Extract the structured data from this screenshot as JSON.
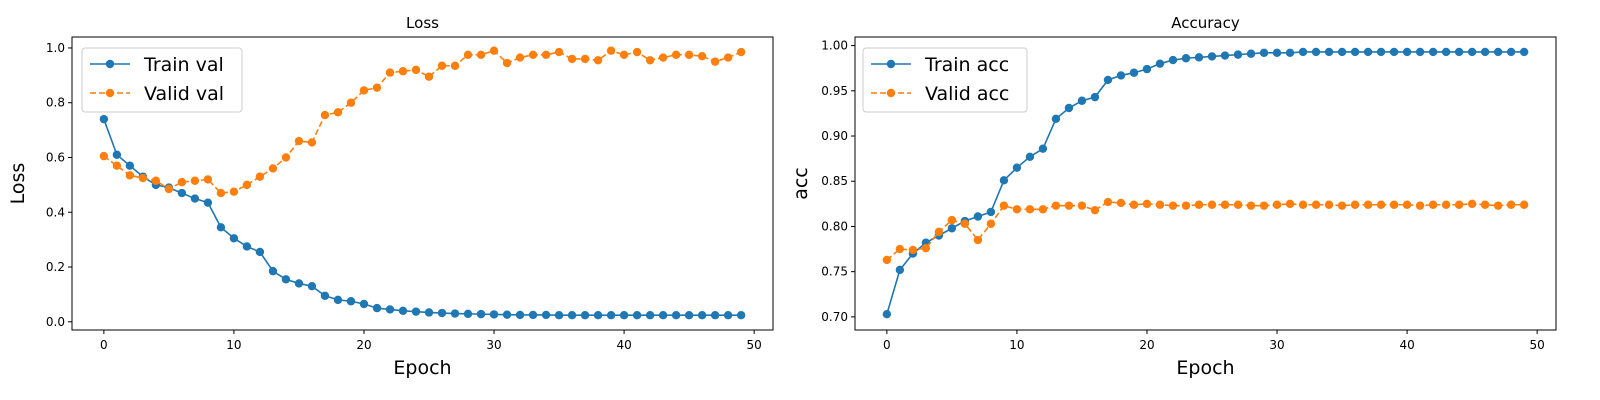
{
  "colors": {
    "train": "#1f77b4",
    "valid": "#ff7f0e"
  },
  "chart_data": [
    {
      "type": "line",
      "title": "Loss",
      "xlabel": "Epoch",
      "ylabel": "Loss",
      "xlim": [
        -2.45,
        51.45
      ],
      "ylim": [
        -0.03,
        1.04
      ],
      "xticks": [
        0,
        10,
        20,
        30,
        40,
        50
      ],
      "yticks": [
        0.0,
        0.2,
        0.4,
        0.6,
        0.8,
        1.0
      ],
      "ytick_decimals": 1,
      "grid": false,
      "legend": "upper-left",
      "x": [
        0,
        1,
        2,
        3,
        4,
        5,
        6,
        7,
        8,
        9,
        10,
        11,
        12,
        13,
        14,
        15,
        16,
        17,
        18,
        19,
        20,
        21,
        22,
        23,
        24,
        25,
        26,
        27,
        28,
        29,
        30,
        31,
        32,
        33,
        34,
        35,
        36,
        37,
        38,
        39,
        40,
        41,
        42,
        43,
        44,
        45,
        46,
        47,
        48,
        49
      ],
      "series": [
        {
          "name": "Train val",
          "color_key": "train",
          "linestyle": "solid",
          "values": [
            0.74,
            0.61,
            0.57,
            0.53,
            0.5,
            0.49,
            0.47,
            0.45,
            0.435,
            0.345,
            0.305,
            0.275,
            0.255,
            0.185,
            0.155,
            0.14,
            0.13,
            0.095,
            0.08,
            0.075,
            0.065,
            0.05,
            0.045,
            0.04,
            0.037,
            0.034,
            0.032,
            0.03,
            0.029,
            0.028,
            0.027,
            0.026,
            0.025,
            0.025,
            0.025,
            0.024,
            0.024,
            0.024,
            0.024,
            0.024,
            0.024,
            0.024,
            0.024,
            0.024,
            0.024,
            0.024,
            0.024,
            0.024,
            0.024,
            0.024
          ]
        },
        {
          "name": "Valid val",
          "color_key": "valid",
          "linestyle": "dashed",
          "values": [
            0.605,
            0.57,
            0.535,
            0.525,
            0.515,
            0.485,
            0.51,
            0.515,
            0.52,
            0.47,
            0.475,
            0.5,
            0.53,
            0.56,
            0.6,
            0.66,
            0.655,
            0.755,
            0.765,
            0.8,
            0.845,
            0.855,
            0.91,
            0.915,
            0.92,
            0.895,
            0.935,
            0.935,
            0.975,
            0.975,
            0.99,
            0.945,
            0.965,
            0.975,
            0.975,
            0.985,
            0.96,
            0.96,
            0.955,
            0.99,
            0.975,
            0.985,
            0.955,
            0.965,
            0.975,
            0.975,
            0.97,
            0.95,
            0.965,
            0.985
          ]
        }
      ]
    },
    {
      "type": "line",
      "title": "Accuracy",
      "xlabel": "Epoch",
      "ylabel": "acc",
      "xlim": [
        -2.45,
        51.45
      ],
      "ylim": [
        0.6855,
        1.0095
      ],
      "xticks": [
        0,
        10,
        20,
        30,
        40,
        50
      ],
      "yticks": [
        0.7,
        0.75,
        0.8,
        0.85,
        0.9,
        0.95,
        1.0
      ],
      "ytick_decimals": 2,
      "grid": false,
      "legend": "upper-left",
      "x": [
        0,
        1,
        2,
        3,
        4,
        5,
        6,
        7,
        8,
        9,
        10,
        11,
        12,
        13,
        14,
        15,
        16,
        17,
        18,
        19,
        20,
        21,
        22,
        23,
        24,
        25,
        26,
        27,
        28,
        29,
        30,
        31,
        32,
        33,
        34,
        35,
        36,
        37,
        38,
        39,
        40,
        41,
        42,
        43,
        44,
        45,
        46,
        47,
        48,
        49
      ],
      "series": [
        {
          "name": "Train acc",
          "color_key": "train",
          "linestyle": "solid",
          "values": [
            0.703,
            0.752,
            0.77,
            0.782,
            0.79,
            0.798,
            0.806,
            0.811,
            0.816,
            0.851,
            0.865,
            0.877,
            0.886,
            0.919,
            0.931,
            0.939,
            0.943,
            0.962,
            0.967,
            0.97,
            0.974,
            0.98,
            0.984,
            0.986,
            0.987,
            0.988,
            0.989,
            0.99,
            0.991,
            0.992,
            0.992,
            0.992,
            0.993,
            0.993,
            0.993,
            0.993,
            0.993,
            0.993,
            0.993,
            0.993,
            0.993,
            0.993,
            0.993,
            0.993,
            0.993,
            0.993,
            0.993,
            0.993,
            0.993,
            0.993
          ]
        },
        {
          "name": "Valid acc",
          "color_key": "valid",
          "linestyle": "dashed",
          "values": [
            0.763,
            0.775,
            0.774,
            0.776,
            0.794,
            0.807,
            0.803,
            0.785,
            0.803,
            0.823,
            0.819,
            0.819,
            0.819,
            0.823,
            0.823,
            0.823,
            0.818,
            0.827,
            0.826,
            0.824,
            0.825,
            0.824,
            0.823,
            0.823,
            0.824,
            0.824,
            0.824,
            0.824,
            0.823,
            0.823,
            0.824,
            0.825,
            0.824,
            0.824,
            0.824,
            0.823,
            0.824,
            0.824,
            0.824,
            0.824,
            0.824,
            0.823,
            0.824,
            0.824,
            0.824,
            0.825,
            0.824,
            0.823,
            0.824,
            0.824
          ]
        }
      ]
    }
  ]
}
